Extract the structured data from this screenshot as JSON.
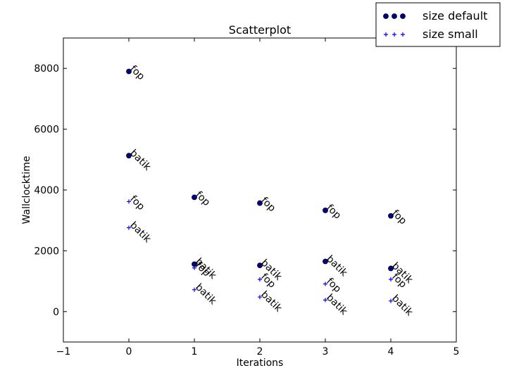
{
  "chart_data": {
    "type": "scatter",
    "title": "Scatterplot",
    "xlabel": "Iterations",
    "ylabel": "Wallclocktime",
    "xlim": [
      -1,
      5
    ],
    "ylim": [
      -1000,
      9000
    ],
    "xticks": [
      -1,
      0,
      1,
      2,
      3,
      4,
      5
    ],
    "yticks": [
      0,
      2000,
      4000,
      6000,
      8000
    ],
    "xtick_labels": [
      "−1",
      "0",
      "1",
      "2",
      "3",
      "4",
      "5"
    ],
    "ytick_labels": [
      "0",
      "2000",
      "4000",
      "6000",
      "8000"
    ],
    "grid": false,
    "legend_position": "top-right, outside plot",
    "series": [
      {
        "name": "size default",
        "marker": "circle",
        "color": "#00008b",
        "points": [
          {
            "x": 0,
            "y": 7900,
            "label": "fop"
          },
          {
            "x": 0,
            "y": 5130,
            "label": "batik"
          },
          {
            "x": 1,
            "y": 3760,
            "label": "fop"
          },
          {
            "x": 1,
            "y": 1560,
            "label": "batik"
          },
          {
            "x": 2,
            "y": 3570,
            "label": "fop"
          },
          {
            "x": 2,
            "y": 1520,
            "label": "batik"
          },
          {
            "x": 3,
            "y": 3330,
            "label": "fop"
          },
          {
            "x": 3,
            "y": 1650,
            "label": "batik"
          },
          {
            "x": 4,
            "y": 3150,
            "label": "fop"
          },
          {
            "x": 4,
            "y": 1420,
            "label": "batik"
          }
        ]
      },
      {
        "name": "size small",
        "marker": "plus",
        "color": "#0000ff",
        "points": [
          {
            "x": 0,
            "y": 3620,
            "label": "fop"
          },
          {
            "x": 0,
            "y": 2760,
            "label": "batik"
          },
          {
            "x": 1,
            "y": 1440,
            "label": "fop"
          },
          {
            "x": 1,
            "y": 720,
            "label": "batik"
          },
          {
            "x": 2,
            "y": 1060,
            "label": "fop"
          },
          {
            "x": 2,
            "y": 480,
            "label": "batik"
          },
          {
            "x": 3,
            "y": 910,
            "label": "fop"
          },
          {
            "x": 3,
            "y": 380,
            "label": "batik"
          },
          {
            "x": 4,
            "y": 1060,
            "label": "fop"
          },
          {
            "x": 4,
            "y": 350,
            "label": "batik"
          }
        ]
      }
    ]
  }
}
